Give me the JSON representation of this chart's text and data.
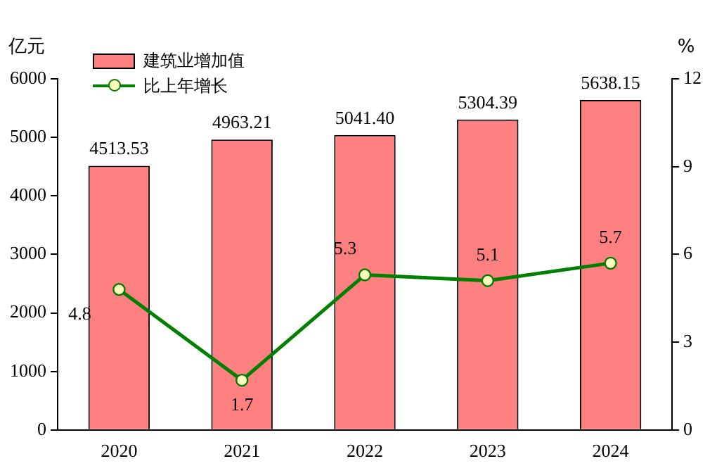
{
  "chart_data": {
    "type": "bar",
    "ylabel": "亿元",
    "y2label": "%",
    "categories": [
      "2020",
      "2021",
      "2022",
      "2023",
      "2024"
    ],
    "series": [
      {
        "name": "建筑业增加值",
        "color": "#ff8080",
        "values": [
          4513.53,
          4963.21,
          5041.4,
          5304.39,
          5638.15
        ],
        "value_labels": [
          "4513.53",
          "4963.21",
          "5041.40",
          "5304.39",
          "5638.15"
        ]
      },
      {
        "name": "比上年增长",
        "type": "line",
        "axis": "y2",
        "color": "#008000",
        "values": [
          4.8,
          1.7,
          5.3,
          5.1,
          5.7
        ],
        "marker": "circle",
        "line_style": "solid"
      }
    ],
    "data_labels": true,
    "ylim": [
      0,
      6000
    ],
    "yticks": [
      0,
      1000,
      2000,
      3000,
      4000,
      5000,
      6000
    ],
    "y2lim": [
      0,
      12
    ],
    "y2ticks": [
      0,
      3,
      6,
      9,
      12
    ],
    "grid": false,
    "legend": "top left"
  }
}
